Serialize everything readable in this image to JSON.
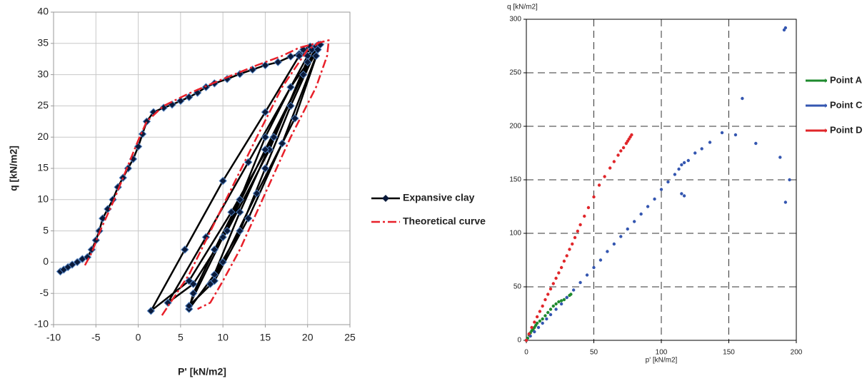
{
  "chart_data": [
    {
      "type": "line",
      "x_label": "P' [kN/m2]",
      "y_label": "q [kN/m2]",
      "xlim": [
        -10,
        25
      ],
      "ylim": [
        -10,
        40
      ],
      "xticks": [
        -10,
        -5,
        0,
        5,
        10,
        15,
        20,
        25
      ],
      "yticks": [
        -10,
        -5,
        0,
        5,
        10,
        15,
        20,
        25,
        30,
        35,
        40
      ],
      "grid": true,
      "legend": "right",
      "series": [
        {
          "name": "Expansive clay",
          "color": "#000000",
          "marker": "diamond",
          "line_style": "solid",
          "x": [
            -9.2,
            -8.8,
            -8.3,
            -7.8,
            -7.2,
            -6.6,
            -6,
            -5.5,
            -5,
            -4.6,
            -4.2,
            -3.6,
            -3,
            -2.4,
            -1.8,
            -1.2,
            -0.6,
            0,
            0.5,
            1,
            1.8,
            3,
            4,
            5,
            6,
            7,
            8,
            9,
            10.5,
            12,
            13.5,
            15,
            16.5,
            18,
            19,
            19.5,
            20.3,
            21.3,
            18,
            15,
            12,
            9,
            6,
            6.5,
            9,
            12,
            15,
            18,
            20,
            21,
            16,
            11,
            6,
            1.5,
            5.5,
            10,
            15,
            19,
            20.5,
            15.5,
            10.5,
            6.5,
            3.5,
            8,
            13,
            18,
            21.5,
            18.5,
            14,
            10,
            8.5,
            12,
            16,
            20,
            21,
            17,
            13,
            9,
            6,
            10,
            15,
            19.5,
            21.2
          ],
          "values": [
            -1.5,
            -1.2,
            -0.8,
            -0.4,
            0,
            0.5,
            0.8,
            2,
            3.5,
            5,
            7,
            8.5,
            10,
            12,
            13.5,
            15,
            16.5,
            18.5,
            20.5,
            22.5,
            24,
            24.7,
            25.2,
            25.8,
            26.4,
            27.1,
            28,
            28.6,
            29.3,
            30.1,
            30.8,
            31.5,
            32,
            32.9,
            33.3,
            34,
            34.5,
            34.8,
            25,
            15,
            5,
            -2,
            -7.5,
            -5,
            2,
            10,
            20,
            28,
            33,
            34.5,
            20,
            8,
            -3,
            -7.8,
            2,
            13,
            24,
            33,
            34,
            18,
            5,
            -3.5,
            -6.5,
            4,
            16,
            28,
            34.8,
            23,
            11,
            0,
            -3.5,
            8,
            20,
            32,
            33,
            19,
            7,
            -3,
            -7,
            4,
            18,
            30,
            34
          ]
        },
        {
          "name": "Theoretical curve",
          "color": "#e8202a",
          "line_style": "dashdot",
          "x": [
            -6.3,
            -5.5,
            -4.5,
            -3,
            -1.5,
            0,
            1,
            3,
            6,
            10,
            14,
            17,
            19,
            21,
            22.5,
            22.3,
            21,
            18,
            15,
            12,
            10,
            8.5,
            7,
            null,
            2.8,
            6,
            10,
            14,
            17,
            20,
            21.3
          ],
          "values": [
            -0.5,
            1.5,
            5,
            9.5,
            14.5,
            19.5,
            22.5,
            25,
            27,
            29.3,
            31.5,
            33,
            34.3,
            35,
            35.5,
            33,
            28,
            20,
            11,
            2,
            -3,
            -6.5,
            -7.5,
            null,
            -8.5,
            -2,
            9,
            20,
            28,
            34,
            35
          ]
        }
      ]
    },
    {
      "type": "scatter",
      "x_label": "p' [kN/m2]",
      "y_label": "q  [kN/m2]",
      "xlim": [
        0,
        200
      ],
      "ylim": [
        0,
        300
      ],
      "xticks": [
        0,
        50,
        100,
        150,
        200
      ],
      "yticks": [
        0,
        50,
        100,
        150,
        200,
        250,
        300
      ],
      "grid": true,
      "grid_style": "dashed",
      "legend": "right",
      "series": [
        {
          "name": "Point A",
          "color": "#1e8a2e",
          "x": [
            0,
            1,
            2,
            3,
            4,
            5,
            6,
            7,
            8,
            10,
            12,
            14,
            16,
            18,
            20,
            22,
            24,
            26,
            28,
            30,
            32,
            33
          ],
          "values": [
            0,
            2,
            5,
            7,
            9,
            10,
            12,
            14,
            16,
            18,
            20,
            23,
            26,
            29,
            32,
            34,
            36,
            37,
            38,
            40,
            42,
            43
          ]
        },
        {
          "name": "Point C",
          "color": "#3456b0",
          "x": [
            0,
            3,
            6,
            9,
            12,
            15,
            18,
            22,
            26,
            30,
            35,
            40,
            45,
            50,
            55,
            60,
            65,
            70,
            75,
            80,
            85,
            90,
            95,
            100,
            105,
            110,
            113,
            115,
            117,
            120,
            125,
            130,
            136,
            145,
            155,
            160,
            170,
            188,
            192,
            195,
            191,
            192,
            115,
            117
          ],
          "values": [
            0,
            4,
            8,
            12,
            16,
            20,
            24,
            29,
            34,
            40,
            47,
            54,
            61,
            68,
            75,
            83,
            90,
            97,
            104,
            111,
            118,
            125,
            132,
            141,
            148,
            155,
            160,
            164,
            166,
            168,
            175,
            179,
            185,
            194,
            192,
            226,
            184,
            171,
            129,
            150,
            290,
            292,
            137,
            135
          ]
        },
        {
          "name": "Point D",
          "color": "#e0262a",
          "x": [
            0,
            2,
            4,
            6,
            8,
            10,
            12,
            14,
            16,
            18,
            20,
            22,
            24,
            26,
            28,
            30,
            32,
            34,
            36,
            38,
            40,
            43,
            46,
            50,
            54,
            58,
            62,
            65,
            68,
            70,
            72,
            74,
            75,
            76,
            77,
            78
          ],
          "values": [
            0,
            6,
            12,
            17,
            22,
            27,
            32,
            38,
            43,
            48,
            53,
            58,
            63,
            68,
            74,
            79,
            85,
            90,
            96,
            102,
            108,
            116,
            124,
            134,
            145,
            153,
            161,
            167,
            173,
            177,
            180,
            184,
            186,
            188,
            190,
            192
          ]
        }
      ]
    }
  ]
}
